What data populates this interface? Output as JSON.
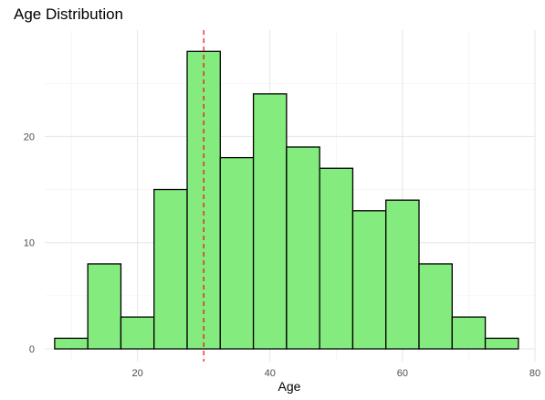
{
  "chart_data": {
    "type": "bar",
    "title": "Age Distribution",
    "xlabel": "Age",
    "ylabel": "",
    "xlim": [
      6,
      80
    ],
    "ylim": [
      -1.2,
      30
    ],
    "x_ticks": [
      20,
      40,
      60,
      80
    ],
    "y_ticks": [
      0,
      10,
      20
    ],
    "grid": true,
    "bar_fill": "#84ec7e",
    "bar_stroke": "#000000",
    "reference_line": {
      "x": 30,
      "color": "#ff0000",
      "style": "dashed"
    },
    "bins": [
      {
        "start": 7.5,
        "end": 12.5,
        "count": 1
      },
      {
        "start": 12.5,
        "end": 17.5,
        "count": 8
      },
      {
        "start": 17.5,
        "end": 22.5,
        "count": 3
      },
      {
        "start": 22.5,
        "end": 27.5,
        "count": 15
      },
      {
        "start": 27.5,
        "end": 32.5,
        "count": 28
      },
      {
        "start": 32.5,
        "end": 37.5,
        "count": 18
      },
      {
        "start": 37.5,
        "end": 42.5,
        "count": 24
      },
      {
        "start": 42.5,
        "end": 47.5,
        "count": 19
      },
      {
        "start": 47.5,
        "end": 52.5,
        "count": 17
      },
      {
        "start": 52.5,
        "end": 57.5,
        "count": 13
      },
      {
        "start": 57.5,
        "end": 62.5,
        "count": 14
      },
      {
        "start": 62.5,
        "end": 67.5,
        "count": 8
      },
      {
        "start": 67.5,
        "end": 72.5,
        "count": 3
      },
      {
        "start": 72.5,
        "end": 77.5,
        "count": 1
      }
    ]
  }
}
